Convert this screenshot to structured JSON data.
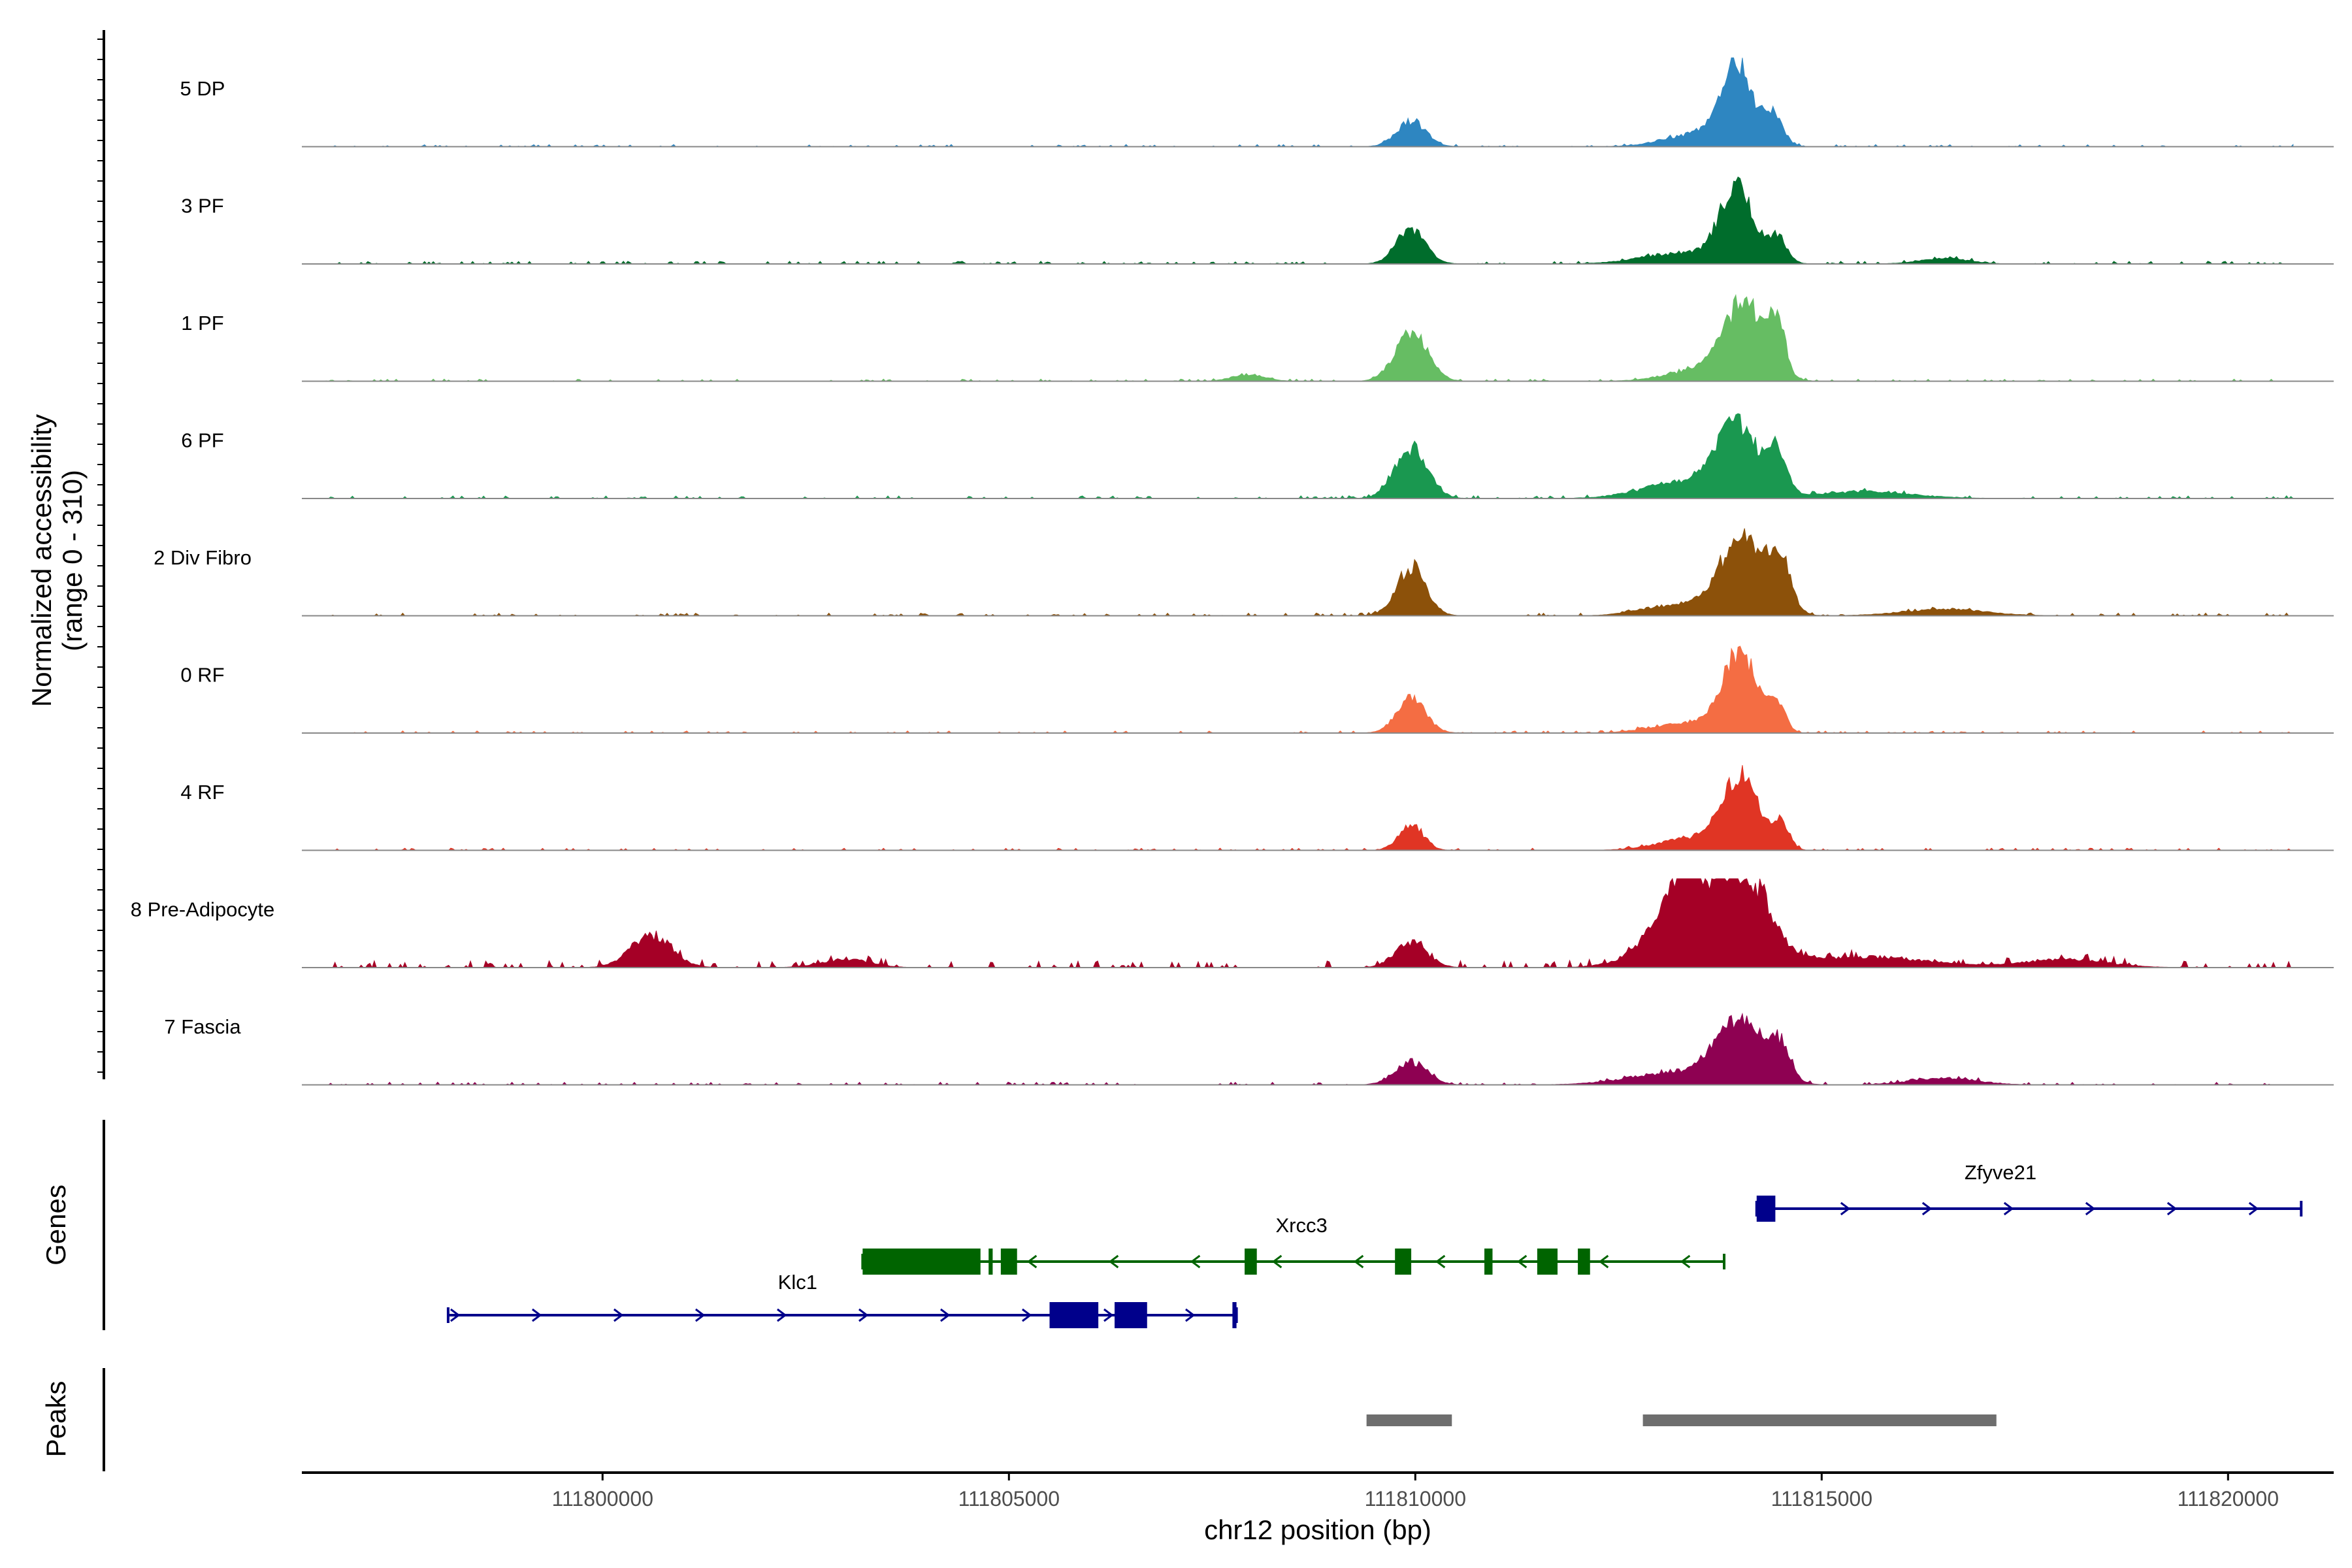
{
  "chart_data": {
    "type": "coverage",
    "chromosome": "chr12",
    "region": [
      111796300,
      111821300
    ],
    "y_axis_title": "Normalized accessibility",
    "y_axis_subtitle": "(range 0 - 310)",
    "ylim": [
      0,
      310
    ],
    "x_axis_title": "chr12 position (bp)",
    "x_ticks": [
      111800000,
      111805000,
      111810000,
      111815000,
      111820000
    ],
    "x_tick_labels": [
      "111800000",
      "111805000",
      "111810000",
      "111815000",
      "111820000"
    ],
    "track_panel_title": "Genes",
    "peak_panel_title": "Peaks",
    "tracks": [
      {
        "name": "5 DP",
        "color": "#2e86c1",
        "peaks": [
          [
            111809950,
            95,
            180
          ],
          [
            111813950,
            300,
            180
          ],
          [
            111814400,
            120,
            120
          ],
          [
            111813500,
            50,
            400
          ]
        ],
        "noise": 8
      },
      {
        "name": "3 PF",
        "color": "#006d2c",
        "peaks": [
          [
            111809950,
            130,
            180
          ],
          [
            111813950,
            275,
            200
          ],
          [
            111814450,
            95,
            120
          ],
          [
            111813300,
            40,
            500
          ],
          [
            111816500,
            20,
            300
          ]
        ],
        "noise": 10
      },
      {
        "name": "1 PF",
        "color": "#66bd63",
        "peaks": [
          [
            111809950,
            180,
            200
          ],
          [
            111814050,
            280,
            250
          ],
          [
            111814450,
            180,
            100
          ],
          [
            111813500,
            40,
            400
          ],
          [
            111807950,
            25,
            200
          ]
        ],
        "noise": 8
      },
      {
        "name": "6 PF",
        "color": "#1a9850",
        "peaks": [
          [
            111809950,
            185,
            200
          ],
          [
            111813950,
            250,
            250
          ],
          [
            111814450,
            165,
            120
          ],
          [
            111813300,
            60,
            500
          ],
          [
            111815500,
            25,
            600
          ]
        ],
        "noise": 10
      },
      {
        "name": "2 Div Fibro",
        "color": "#8c510a",
        "peaks": [
          [
            111809950,
            180,
            180
          ],
          [
            111814050,
            300,
            280
          ],
          [
            111814500,
            160,
            120
          ],
          [
            111813200,
            40,
            400
          ],
          [
            111816500,
            25,
            500
          ]
        ],
        "noise": 10
      },
      {
        "name": "0 RF",
        "color": "#f46d43",
        "peaks": [
          [
            111809950,
            125,
            180
          ],
          [
            111814000,
            290,
            220
          ],
          [
            111814450,
            100,
            100
          ],
          [
            111813300,
            35,
            400
          ]
        ],
        "noise": 8
      },
      {
        "name": "4 RF",
        "color": "#e03524",
        "peaks": [
          [
            111809950,
            95,
            150
          ],
          [
            111814000,
            260,
            220
          ],
          [
            111814500,
            95,
            100
          ],
          [
            111813400,
            45,
            400
          ]
        ],
        "noise": 8
      },
      {
        "name": "8 Pre-Adipocyte",
        "color": "#a50026",
        "peaks": [
          [
            111800600,
            120,
            250
          ],
          [
            111809950,
            90,
            200
          ],
          [
            111813350,
            310,
            300
          ],
          [
            111814050,
            330,
            300
          ],
          [
            111813000,
            60,
            400
          ],
          [
            111815500,
            40,
            800
          ],
          [
            111803000,
            30,
            300
          ],
          [
            111818000,
            30,
            500
          ]
        ],
        "noise": 25
      },
      {
        "name": "7 Fascia",
        "color": "#8e0152",
        "peaks": [
          [
            111809950,
            85,
            200
          ],
          [
            111814000,
            220,
            280
          ],
          [
            111814500,
            120,
            120
          ],
          [
            111813300,
            50,
            600
          ],
          [
            111816500,
            25,
            400
          ]
        ],
        "noise": 10
      }
    ],
    "genes": [
      {
        "name": "Zfyve21",
        "strand": "+",
        "color": "#00008b",
        "start": 111814200,
        "end": 111820900,
        "exons": [
          [
            111814200,
            111814430
          ]
        ],
        "label_pos": 111817200
      },
      {
        "name": "Xrcc3",
        "strand": "-",
        "color": "#006400",
        "start": 111803200,
        "end": 111813800,
        "exons": [
          [
            111803200,
            111804650
          ],
          [
            111804750,
            111804800
          ],
          [
            111804900,
            111805100
          ],
          [
            111807900,
            111808050
          ],
          [
            111809750,
            111809950
          ],
          [
            111810850,
            111810950
          ],
          [
            111811500,
            111811750
          ],
          [
            111812000,
            111812150
          ]
        ],
        "label_pos": 111808600
      },
      {
        "name": "Klc1",
        "strand": "+",
        "color": "#00008b",
        "start": 111798100,
        "end": 111807800,
        "exons": [
          [
            111805500,
            111806100
          ],
          [
            111806300,
            111806700
          ],
          [
            111807750,
            111807800
          ]
        ],
        "label_pos": 111802400
      }
    ],
    "peaks_regions": [
      [
        111809400,
        111810450
      ],
      [
        111812800,
        111817150
      ]
    ]
  }
}
